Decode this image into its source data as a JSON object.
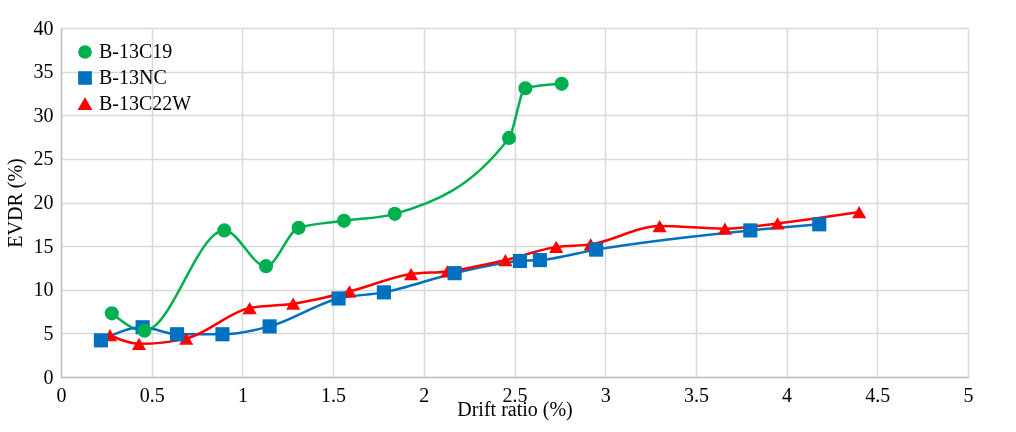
{
  "chart_data": {
    "type": "line",
    "xlabel": "Drift ratio (%)",
    "ylabel": "EVDR (%)",
    "xlim": [
      0,
      5
    ],
    "ylim": [
      0,
      40
    ],
    "xticks": [
      0,
      0.5,
      1,
      1.5,
      2,
      2.5,
      3,
      3.5,
      4,
      4.5,
      5
    ],
    "yticks": [
      0,
      5,
      10,
      15,
      20,
      25,
      30,
      35,
      40
    ],
    "grid": true,
    "legend": "top left",
    "series": [
      {
        "name": "B-13C19",
        "color": "#00b050",
        "marker": "circle",
        "x": [
          0.28,
          0.46,
          0.9,
          1.13,
          1.31,
          1.56,
          1.84,
          2.47,
          2.56,
          2.76
        ],
        "values": [
          7.3,
          5.3,
          16.8,
          12.7,
          17.1,
          17.9,
          18.7,
          27.4,
          33.1,
          33.6
        ]
      },
      {
        "name": "B-13NC",
        "color": "#0070c0",
        "marker": "square",
        "x": [
          0.22,
          0.45,
          0.64,
          0.89,
          1.15,
          1.53,
          1.78,
          2.17,
          2.53,
          2.64,
          2.95,
          3.8,
          4.18
        ],
        "values": [
          4.2,
          5.7,
          4.9,
          4.9,
          5.8,
          9.0,
          9.7,
          11.9,
          13.3,
          13.4,
          14.6,
          16.8,
          17.5
        ]
      },
      {
        "name": "B-13C22W",
        "color": "#ff0000",
        "marker": "triangle",
        "x": [
          0.27,
          0.43,
          0.69,
          1.04,
          1.28,
          1.59,
          1.93,
          2.13,
          2.45,
          2.73,
          2.92,
          3.3,
          3.66,
          3.95,
          4.4
        ],
        "values": [
          4.8,
          3.8,
          4.4,
          7.9,
          8.4,
          9.8,
          11.8,
          12.1,
          13.4,
          14.9,
          15.2,
          17.3,
          17.0,
          17.6,
          18.9
        ]
      }
    ]
  }
}
